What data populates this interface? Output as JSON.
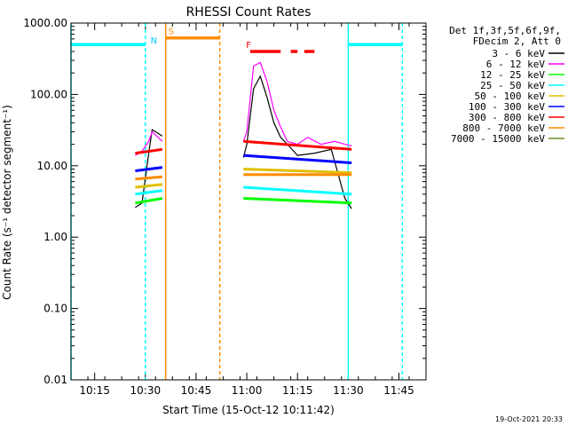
{
  "chart_data": {
    "type": "line",
    "title": "RHESSI Count Rates",
    "xlabel": "Start Time (15-Oct-12 10:11:42)",
    "ylabel": "Count Rate (s⁻¹ detector segment⁻¹)",
    "xlim": [
      "10:08",
      "11:53"
    ],
    "ylim": [
      0.01,
      1000
    ],
    "y_scale": "log",
    "x_ticks": [
      "10:15",
      "10:30",
      "10:45",
      "11:00",
      "11:15",
      "11:30",
      "11:45"
    ],
    "y_ticks": [
      "0.01",
      "0.10",
      "1.00",
      "10.00",
      "100.00",
      "1000.00"
    ],
    "legend_header": [
      "Det 1f,3f,5f,6f,9f,",
      "FDecim 2, Att 0"
    ],
    "legend_position": "right, outside plot",
    "series": [
      {
        "name": "3 - 6 keV",
        "color": "#000000",
        "x": [
          "10:27",
          "10:29",
          "10:31",
          "10:32",
          "10:33",
          "10:35",
          "10:59",
          "11:00",
          "11:02",
          "11:04",
          "11:06",
          "11:08",
          "11:10",
          "11:12",
          "11:15",
          "11:20",
          "11:25",
          "11:29",
          "11:31"
        ],
        "y": [
          2.6,
          3.0,
          15,
          32,
          30,
          26,
          13,
          20,
          120,
          180,
          90,
          40,
          25,
          20,
          14,
          15,
          17,
          3.5,
          2.5
        ]
      },
      {
        "name": "6 - 12 keV",
        "color": "#ff00ff",
        "x": [
          "10:27",
          "10:29",
          "10:31",
          "10:32",
          "10:33",
          "10:35",
          "10:59",
          "11:00",
          "11:02",
          "11:04",
          "11:06",
          "11:08",
          "11:10",
          "11:12",
          "11:15",
          "11:18",
          "11:22",
          "11:26",
          "11:29",
          "11:31"
        ],
        "y": [
          14,
          16,
          22,
          30,
          27,
          22,
          22,
          30,
          250,
          280,
          150,
          60,
          35,
          22,
          20,
          25,
          20,
          22,
          20,
          19
        ]
      },
      {
        "name": "12 - 25 keV",
        "color": "#00ff00",
        "x": [
          "10:27",
          "10:35",
          "10:59",
          "11:31"
        ],
        "y": [
          3.0,
          3.5,
          3.5,
          3.0
        ]
      },
      {
        "name": "25 - 50 keV",
        "color": "#00ffff",
        "x": [
          "10:27",
          "10:35",
          "10:59",
          "11:31"
        ],
        "y": [
          4.0,
          4.5,
          5.0,
          4.0
        ]
      },
      {
        "name": "50 - 100 keV",
        "color": "#e0c000",
        "x": [
          "10:27",
          "10:35",
          "10:59",
          "11:31"
        ],
        "y": [
          5.0,
          5.5,
          9.0,
          8.0
        ]
      },
      {
        "name": "100 - 300 keV",
        "color": "#0000ff",
        "x": [
          "10:27",
          "10:35",
          "10:59",
          "11:31"
        ],
        "y": [
          8.5,
          9.5,
          14,
          11
        ]
      },
      {
        "name": "300 - 800 keV",
        "color": "#ff0000",
        "x": [
          "10:27",
          "10:35",
          "10:59",
          "11:31"
        ],
        "y": [
          15,
          17,
          22,
          17
        ]
      },
      {
        "name": "800 - 7000 keV",
        "color": "#ff8c00",
        "x": [
          "10:27",
          "10:35",
          "10:59",
          "11:31"
        ],
        "y": [
          6.5,
          7.0,
          7.5,
          7.5
        ]
      },
      {
        "name": "7000 - 15000 keV",
        "color": "#6b8e23",
        "x": [],
        "y": []
      }
    ],
    "annotations": [
      {
        "label": "N",
        "color": "#00c8ff",
        "x": "10:31"
      },
      {
        "label": "S",
        "color": "#ff8c00",
        "x": "10:36"
      },
      {
        "label": "F",
        "color": "#ff0000",
        "x": "10:59"
      }
    ],
    "state_bars": [
      {
        "state": "night",
        "color": "#00ffff",
        "y": 500,
        "segments": [
          [
            "10:08",
            "10:30"
          ],
          [
            "11:30",
            "11:46"
          ]
        ]
      },
      {
        "state": "saa",
        "color": "#ff8c00",
        "y": 620,
        "segments": [
          [
            "10:36",
            "10:52"
          ]
        ]
      },
      {
        "state": "flare",
        "color": "#ff0000",
        "y": 400,
        "segments": [
          [
            "11:01",
            "11:10"
          ],
          [
            "11:13",
            "11:15"
          ],
          [
            "11:17",
            "11:20"
          ]
        ]
      }
    ],
    "vertical_lines": [
      {
        "color": "#00ffff",
        "style": "solid",
        "x": "10:08"
      },
      {
        "color": "#00ffff",
        "style": "dashed",
        "x": "10:30"
      },
      {
        "color": "#ff8c00",
        "style": "solid",
        "x": "10:36"
      },
      {
        "color": "#ff8c00",
        "style": "dashed",
        "x": "10:52"
      },
      {
        "color": "#00ffff",
        "style": "solid",
        "x": "11:30"
      },
      {
        "color": "#00ffff",
        "style": "dashed",
        "x": "11:46"
      }
    ],
    "grid": false
  },
  "footer": {
    "timestamp": "19-Oct-2021 20:33"
  }
}
